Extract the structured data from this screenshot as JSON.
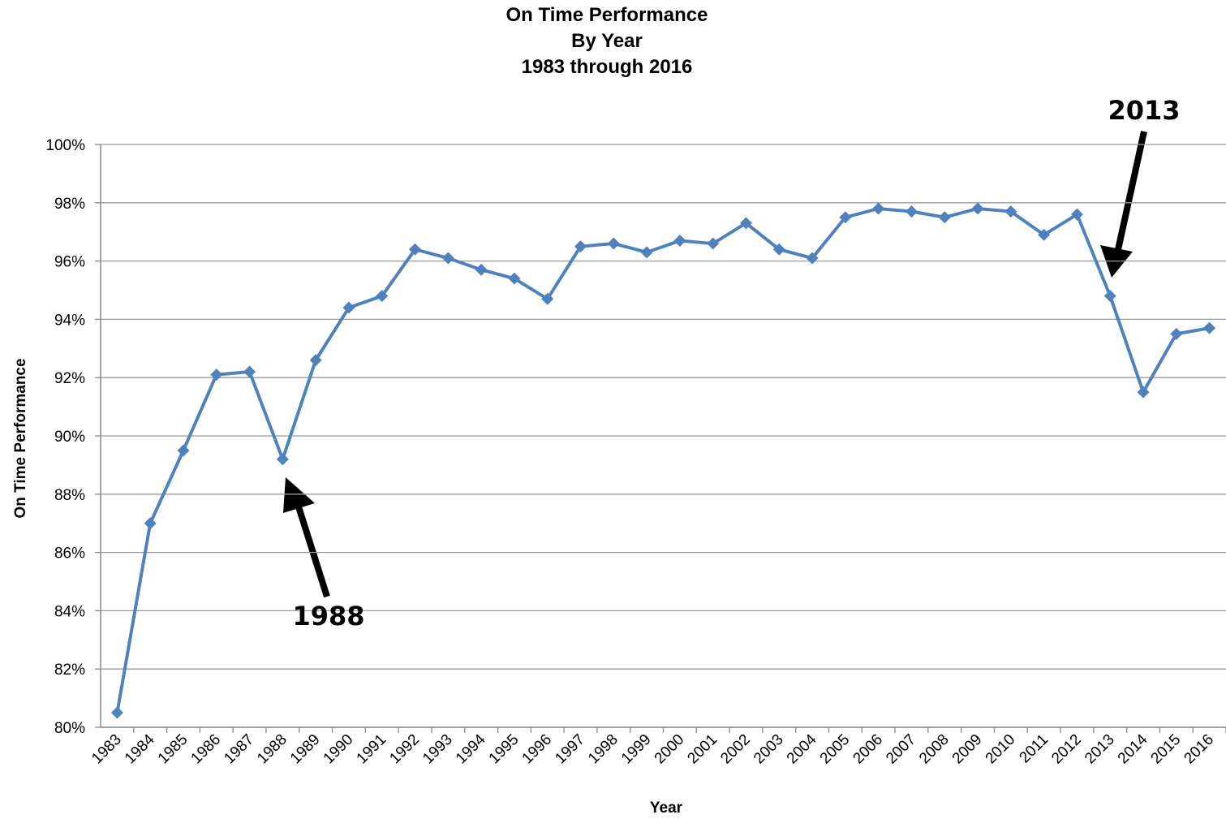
{
  "chart_data": {
    "type": "line",
    "title": [
      "On Time Performance",
      "By Year",
      "1983 through 2016"
    ],
    "x_label": "Year",
    "y_label": "On Time Performance",
    "categories": [
      "1983",
      "1984",
      "1985",
      "1986",
      "1987",
      "1988",
      "1989",
      "1990",
      "1991",
      "1992",
      "1993",
      "1994",
      "1995",
      "1996",
      "1997",
      "1998",
      "1999",
      "2000",
      "2001",
      "2002",
      "2003",
      "2004",
      "2005",
      "2006",
      "2007",
      "2008",
      "2009",
      "2010",
      "2011",
      "2012",
      "2013",
      "2014",
      "2015",
      "2016"
    ],
    "series": [
      {
        "color": "#4f81bd",
        "values": [
          80.5,
          87.0,
          89.5,
          92.1,
          92.2,
          89.2,
          92.6,
          94.4,
          94.8,
          96.4,
          96.1,
          95.7,
          95.4,
          94.7,
          96.5,
          96.6,
          96.3,
          96.7,
          96.6,
          97.3,
          96.4,
          96.1,
          97.5,
          97.8,
          97.7,
          97.5,
          97.8,
          97.7,
          96.9,
          97.6,
          94.8,
          91.5,
          93.5,
          93.7
        ]
      }
    ],
    "ylim": [
      80,
      100
    ],
    "yticks": [
      {
        "value": 80,
        "label": "80%"
      },
      {
        "value": 82,
        "label": "82%"
      },
      {
        "value": 84,
        "label": "84%"
      },
      {
        "value": 86,
        "label": "86%"
      },
      {
        "value": 88,
        "label": "88%"
      },
      {
        "value": 90,
        "label": "90%"
      },
      {
        "value": 92,
        "label": "92%"
      },
      {
        "value": 94,
        "label": "94%"
      },
      {
        "value": 96,
        "label": "96%"
      },
      {
        "value": 98,
        "label": "98%"
      },
      {
        "value": 100,
        "label": "100%"
      }
    ],
    "grid": true,
    "annotations": [
      "1988",
      "2013"
    ]
  }
}
